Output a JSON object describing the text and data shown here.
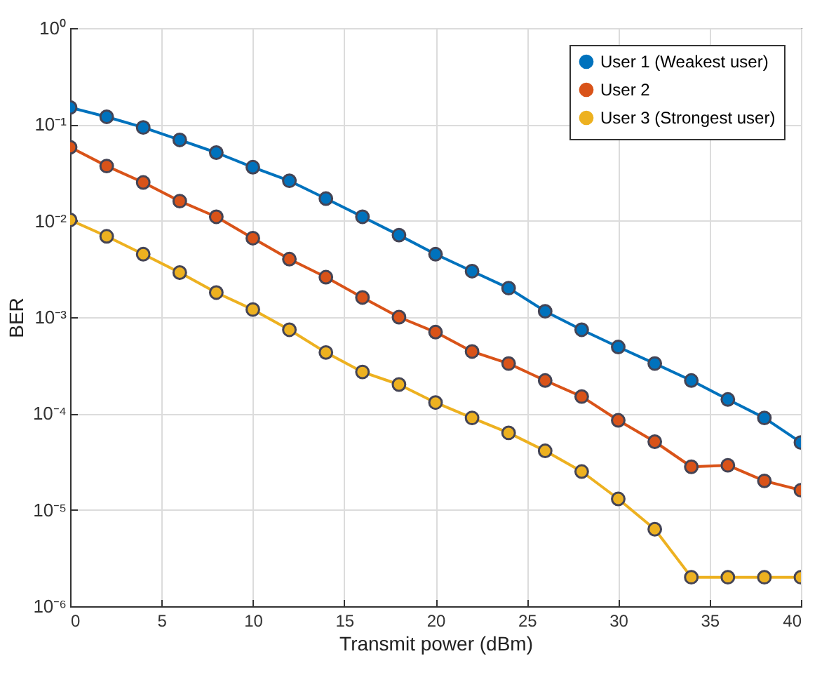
{
  "chart_data": {
    "type": "line",
    "xlabel": "Transmit power (dBm)",
    "ylabel": "BER",
    "x": [
      0,
      2,
      4,
      6,
      8,
      10,
      12,
      14,
      16,
      18,
      20,
      22,
      24,
      26,
      28,
      30,
      32,
      34,
      36,
      38,
      40
    ],
    "series": [
      {
        "name": "User 1 (Weakest user)",
        "color": "#0072bd",
        "values": [
          0.15,
          0.12,
          0.093,
          0.069,
          0.051,
          0.036,
          0.026,
          0.017,
          0.011,
          0.0071,
          0.0045,
          0.003,
          0.002,
          0.00115,
          0.00074,
          0.00049,
          0.00033,
          0.00022,
          0.00014,
          9e-05,
          5e-05
        ]
      },
      {
        "name": "User 2",
        "color": "#d95319",
        "values": [
          0.058,
          0.037,
          0.025,
          0.016,
          0.011,
          0.0066,
          0.004,
          0.0026,
          0.0016,
          0.001,
          0.0007,
          0.00044,
          0.00033,
          0.00022,
          0.00015,
          8.5e-05,
          5.1e-05,
          2.8e-05,
          2.9e-05,
          2e-05,
          1.6e-05
        ]
      },
      {
        "name": "User 3 (Strongest user)",
        "color": "#edb120",
        "values": [
          0.0102,
          0.0069,
          0.0045,
          0.0029,
          0.0018,
          0.0012,
          0.00074,
          0.00043,
          0.00027,
          0.0002,
          0.00013,
          9e-05,
          6.3e-05,
          4.1e-05,
          2.5e-05,
          1.3e-05,
          6.3e-06,
          2e-06,
          2e-06,
          2e-06,
          2e-06
        ]
      }
    ],
    "xlim": [
      0,
      40
    ],
    "xticks": [
      0,
      5,
      10,
      15,
      20,
      25,
      30,
      35,
      40
    ],
    "ylim": [
      1e-06,
      1
    ],
    "yticks": [
      {
        "value": 1e-06,
        "label": "10⁻⁶"
      },
      {
        "value": 1e-05,
        "label": "10⁻⁵"
      },
      {
        "value": 0.0001,
        "label": "10⁻⁴"
      },
      {
        "value": 0.001,
        "label": "10⁻³"
      },
      {
        "value": 0.01,
        "label": "10⁻²"
      },
      {
        "value": 0.1,
        "label": "10⁻¹"
      },
      {
        "value": 1,
        "label": "10⁰"
      }
    ],
    "log": true,
    "grid": true,
    "legend": "top right",
    "marker": "circle",
    "line_style": "solid"
  }
}
